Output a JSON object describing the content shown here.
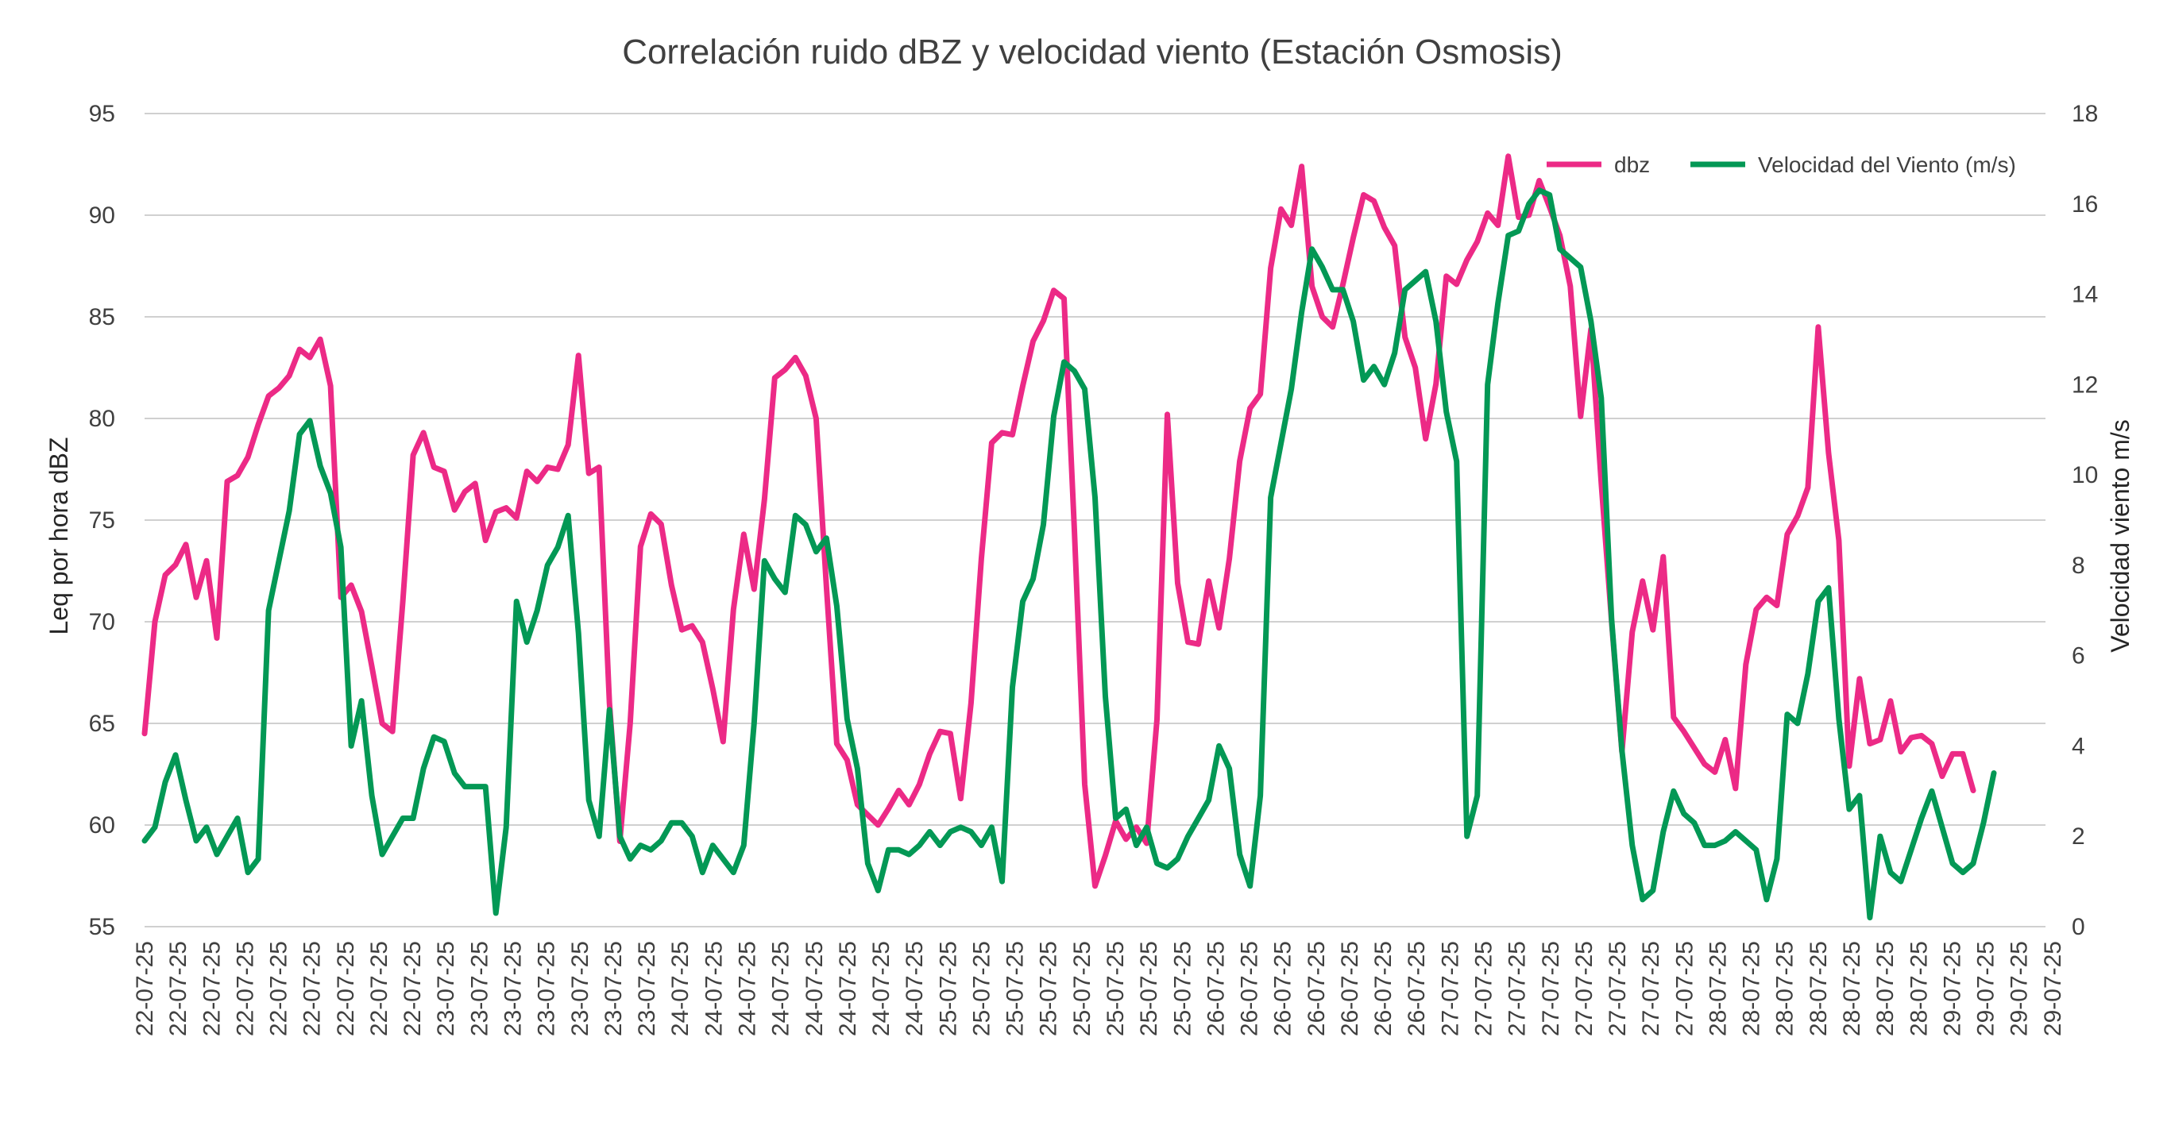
{
  "chart_data": {
    "type": "line",
    "title": "Correlación ruido dBZ y velocidad viento (Estación Osmosis)",
    "ylabel": "Leq  por hora dBZ",
    "y2label": "Velocidad viento m/s",
    "ylim": [
      55,
      95
    ],
    "y2lim": [
      0,
      18
    ],
    "yticks": [
      "55",
      "60",
      "65",
      "70",
      "75",
      "80",
      "85",
      "90",
      "95"
    ],
    "y2ticks": [
      "0",
      "2",
      "4",
      "6",
      "8",
      "10",
      "12",
      "14",
      "16",
      "18"
    ],
    "xtick_labels": [
      "22-07-25",
      "22-07-25",
      "22-07-25",
      "22-07-25",
      "22-07-25",
      "22-07-25",
      "22-07-25",
      "22-07-25",
      "22-07-25",
      "23-07-25",
      "23-07-25",
      "23-07-25",
      "23-07-25",
      "23-07-25",
      "23-07-25",
      "23-07-25",
      "24-07-25",
      "24-07-25",
      "24-07-25",
      "24-07-25",
      "24-07-25",
      "24-07-25",
      "24-07-25",
      "24-07-25",
      "25-07-25",
      "25-07-25",
      "25-07-25",
      "25-07-25",
      "25-07-25",
      "25-07-25",
      "25-07-25",
      "25-07-25",
      "26-07-25",
      "26-07-25",
      "26-07-25",
      "26-07-25",
      "26-07-25",
      "26-07-25",
      "26-07-25",
      "27-07-25",
      "27-07-25",
      "27-07-25",
      "27-07-25",
      "27-07-25",
      "27-07-25",
      "27-07-25",
      "27-07-25",
      "28-07-25",
      "28-07-25",
      "28-07-25",
      "28-07-25",
      "28-07-25",
      "28-07-25",
      "28-07-25",
      "29-07-25",
      "29-07-25",
      "29-07-25",
      "29-07-25"
    ],
    "legend_position": "top-right",
    "series": [
      {
        "name": "dbz",
        "axis": "left",
        "color": "#EC2A86",
        "values": [
          64.5,
          70.0,
          72.3,
          72.8,
          73.8,
          71.2,
          73.0,
          69.2,
          76.9,
          77.2,
          78.1,
          79.7,
          81.1,
          81.5,
          82.1,
          83.4,
          83.0,
          83.9,
          81.6,
          71.2,
          71.8,
          70.5,
          67.8,
          65.0,
          64.6,
          71.0,
          78.2,
          79.3,
          77.6,
          77.4,
          75.5,
          76.4,
          76.8,
          74.0,
          75.4,
          75.6,
          75.1,
          77.4,
          76.9,
          77.6,
          77.5,
          78.7,
          83.1,
          77.3,
          77.6,
          66.0,
          59.2,
          65.0,
          73.7,
          75.3,
          74.8,
          71.8,
          69.6,
          69.8,
          69.0,
          66.7,
          64.1,
          70.6,
          74.3,
          71.6,
          76.0,
          82.0,
          82.4,
          83.0,
          82.1,
          80.0,
          71.7,
          64.0,
          63.2,
          61.0,
          60.5,
          60.0,
          60.8,
          61.7,
          61.0,
          62.0,
          63.5,
          64.6,
          64.5,
          61.3,
          66.0,
          73.1,
          78.8,
          79.3,
          79.2,
          81.6,
          83.8,
          84.8,
          86.3,
          85.9,
          74.5,
          62.0,
          57.0,
          58.5,
          60.2,
          59.3,
          59.9,
          59.1,
          65.2,
          80.2,
          71.9,
          69.0,
          68.9,
          72.0,
          69.7,
          73.1,
          77.9,
          80.5,
          81.2,
          87.4,
          90.3,
          89.5,
          92.4,
          86.5,
          85.0,
          84.5,
          86.6,
          88.9,
          91.0,
          90.7,
          89.4,
          88.5,
          84.0,
          82.5,
          79.0,
          81.7,
          87.0,
          86.6,
          87.8,
          88.7,
          90.1,
          89.5,
          92.9,
          89.9,
          90.0,
          91.7,
          90.4,
          89.0,
          86.5,
          80.1,
          84.4,
          76.8,
          70.0,
          63.6,
          69.5,
          72.0,
          69.6,
          73.2,
          65.3,
          64.6,
          63.8,
          63.0,
          62.6,
          64.2,
          61.8,
          67.9,
          70.6,
          71.2,
          70.8,
          74.3,
          75.2,
          76.6,
          84.5,
          78.3,
          74.0,
          62.9,
          67.2,
          64.0,
          64.2,
          66.1,
          63.6,
          64.3,
          64.4,
          64.0,
          62.4,
          63.5,
          63.5,
          61.7
        ]
      },
      {
        "name": "Velocidad del Viento (m/s)",
        "axis": "right",
        "color": "#039855",
        "values": [
          1.9,
          2.2,
          3.2,
          3.8,
          2.8,
          1.9,
          2.2,
          1.6,
          2.0,
          2.4,
          1.2,
          1.5,
          7.0,
          8.1,
          9.2,
          10.9,
          11.2,
          10.2,
          9.6,
          8.4,
          4.0,
          5.0,
          2.9,
          1.6,
          2.0,
          2.4,
          2.4,
          3.5,
          4.2,
          4.1,
          3.4,
          3.1,
          3.1,
          3.1,
          0.3,
          2.2,
          7.2,
          6.3,
          7.0,
          8.0,
          8.4,
          9.1,
          6.5,
          2.8,
          2.0,
          4.8,
          2.0,
          1.5,
          1.8,
          1.7,
          1.9,
          2.3,
          2.3,
          2.0,
          1.2,
          1.8,
          1.5,
          1.2,
          1.8,
          4.5,
          8.1,
          7.7,
          7.4,
          9.1,
          8.9,
          8.3,
          8.6,
          7.1,
          4.6,
          3.5,
          1.4,
          0.8,
          1.7,
          1.7,
          1.6,
          1.8,
          2.1,
          1.8,
          2.1,
          2.2,
          2.1,
          1.8,
          2.2,
          1.0,
          5.3,
          7.2,
          7.7,
          8.9,
          11.3,
          12.5,
          12.3,
          11.9,
          9.5,
          5.1,
          2.4,
          2.6,
          1.8,
          2.2,
          1.4,
          1.3,
          1.5,
          2.0,
          2.4,
          2.8,
          4.0,
          3.5,
          1.6,
          0.9,
          2.9,
          9.5,
          10.7,
          11.9,
          13.6,
          15.0,
          14.6,
          14.1,
          14.1,
          13.4,
          12.1,
          12.4,
          12.0,
          12.7,
          14.1,
          14.3,
          14.5,
          13.4,
          11.4,
          10.3,
          2.0,
          2.9,
          12.0,
          13.8,
          15.3,
          15.4,
          16.0,
          16.3,
          16.2,
          15.0,
          14.8,
          14.6,
          13.4,
          11.7,
          6.8,
          3.9,
          1.8,
          0.6,
          0.8,
          2.1,
          3.0,
          2.5,
          2.3,
          1.8,
          1.8,
          1.9,
          2.1,
          1.9,
          1.7,
          0.6,
          1.5,
          4.7,
          4.5,
          5.6,
          7.2,
          7.5,
          4.6,
          2.6,
          2.9,
          0.2,
          2.0,
          1.2,
          1.0,
          1.7,
          2.4,
          3.0,
          2.2,
          1.4,
          1.2,
          1.4,
          2.3,
          3.4
        ]
      }
    ]
  }
}
